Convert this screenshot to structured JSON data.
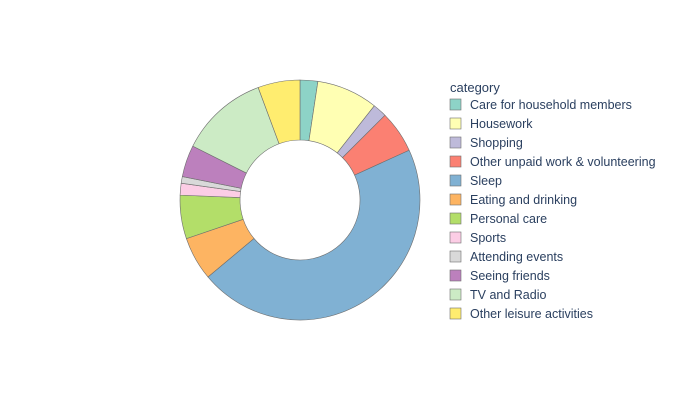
{
  "chart_data": {
    "type": "pie",
    "hole": 0.5,
    "sort": false,
    "direction": "clockwise",
    "legend_title": "category",
    "legend_position": "right",
    "slices": [
      {
        "label": "Care for household members",
        "value": 2.4,
        "color": "#8dd3c7"
      },
      {
        "label": "Housework",
        "value": 8.3,
        "color": "#ffffb3"
      },
      {
        "label": "Shopping",
        "value": 1.9,
        "color": "#bebada"
      },
      {
        "label": "Other unpaid work & volunteering",
        "value": 5.7,
        "color": "#fb8072"
      },
      {
        "label": "Sleep",
        "value": 46.0,
        "color": "#80b1d3"
      },
      {
        "label": "Eating and drinking",
        "value": 5.9,
        "color": "#fdb462"
      },
      {
        "label": "Personal care",
        "value": 5.9,
        "color": "#b3de69"
      },
      {
        "label": "Sports",
        "value": 1.6,
        "color": "#fccde5"
      },
      {
        "label": "Attending events",
        "value": 0.9,
        "color": "#d9d9d9"
      },
      {
        "label": "Seeing friends",
        "value": 4.3,
        "color": "#bc80bd"
      },
      {
        "label": "TV and Radio",
        "value": 12.0,
        "color": "#ccebc5"
      },
      {
        "label": "Other leisure activities",
        "value": 5.7,
        "color": "#ffed6f"
      }
    ]
  }
}
